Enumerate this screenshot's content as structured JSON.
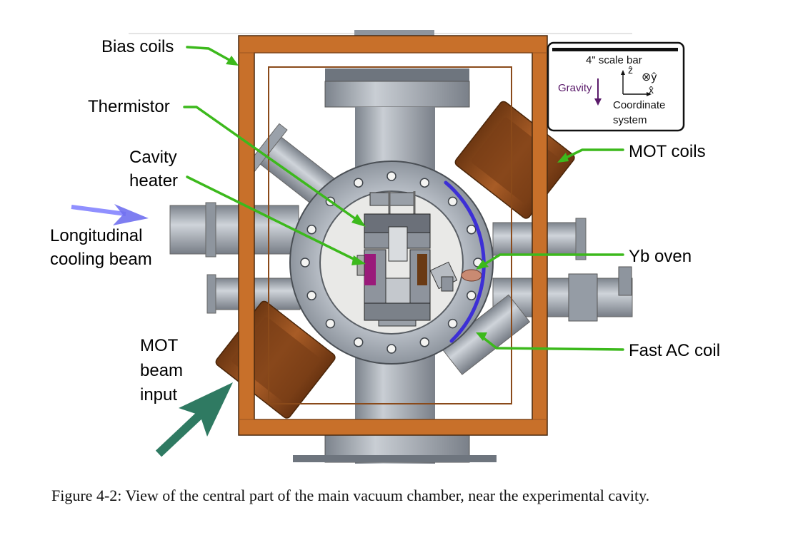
{
  "labels": {
    "bias_coils": "Bias coils",
    "thermistor": "Thermistor",
    "cavity_heater_line1": "Cavity",
    "cavity_heater_line2": "heater",
    "longitudinal_line1": "Longitudinal",
    "longitudinal_line2": "cooling beam",
    "mot_beam_line1": "MOT",
    "mot_beam_line2": "beam",
    "mot_beam_line3": "input",
    "mot_coils": "MOT coils",
    "yb_oven": "Yb oven",
    "fast_ac_coil": "Fast AC coil"
  },
  "legend": {
    "scale_bar": "4\" scale bar",
    "gravity": "Gravity",
    "z_axis": "ẑ",
    "y_axis": "⊗ŷ",
    "x_axis": "x̂",
    "coord_line1": "Coordinate",
    "coord_line2": "system"
  },
  "caption": "Figure 4-2: View of the central part of the main vacuum chamber, near the experimental cavity.",
  "colors": {
    "arrow_green": "#3cb91c",
    "frame_copper": "#c8702a",
    "mot_coil_copper": "#8b4a1c",
    "steel": "#a4abb4",
    "coil_blue": "#3d2fd6",
    "longitudinal_arrow": "#6f6ff5",
    "mot_beam_arrow": "#2f7a62",
    "gravity_arrow": "#5a1a6a",
    "heater_magenta": "#9a1a7a"
  }
}
